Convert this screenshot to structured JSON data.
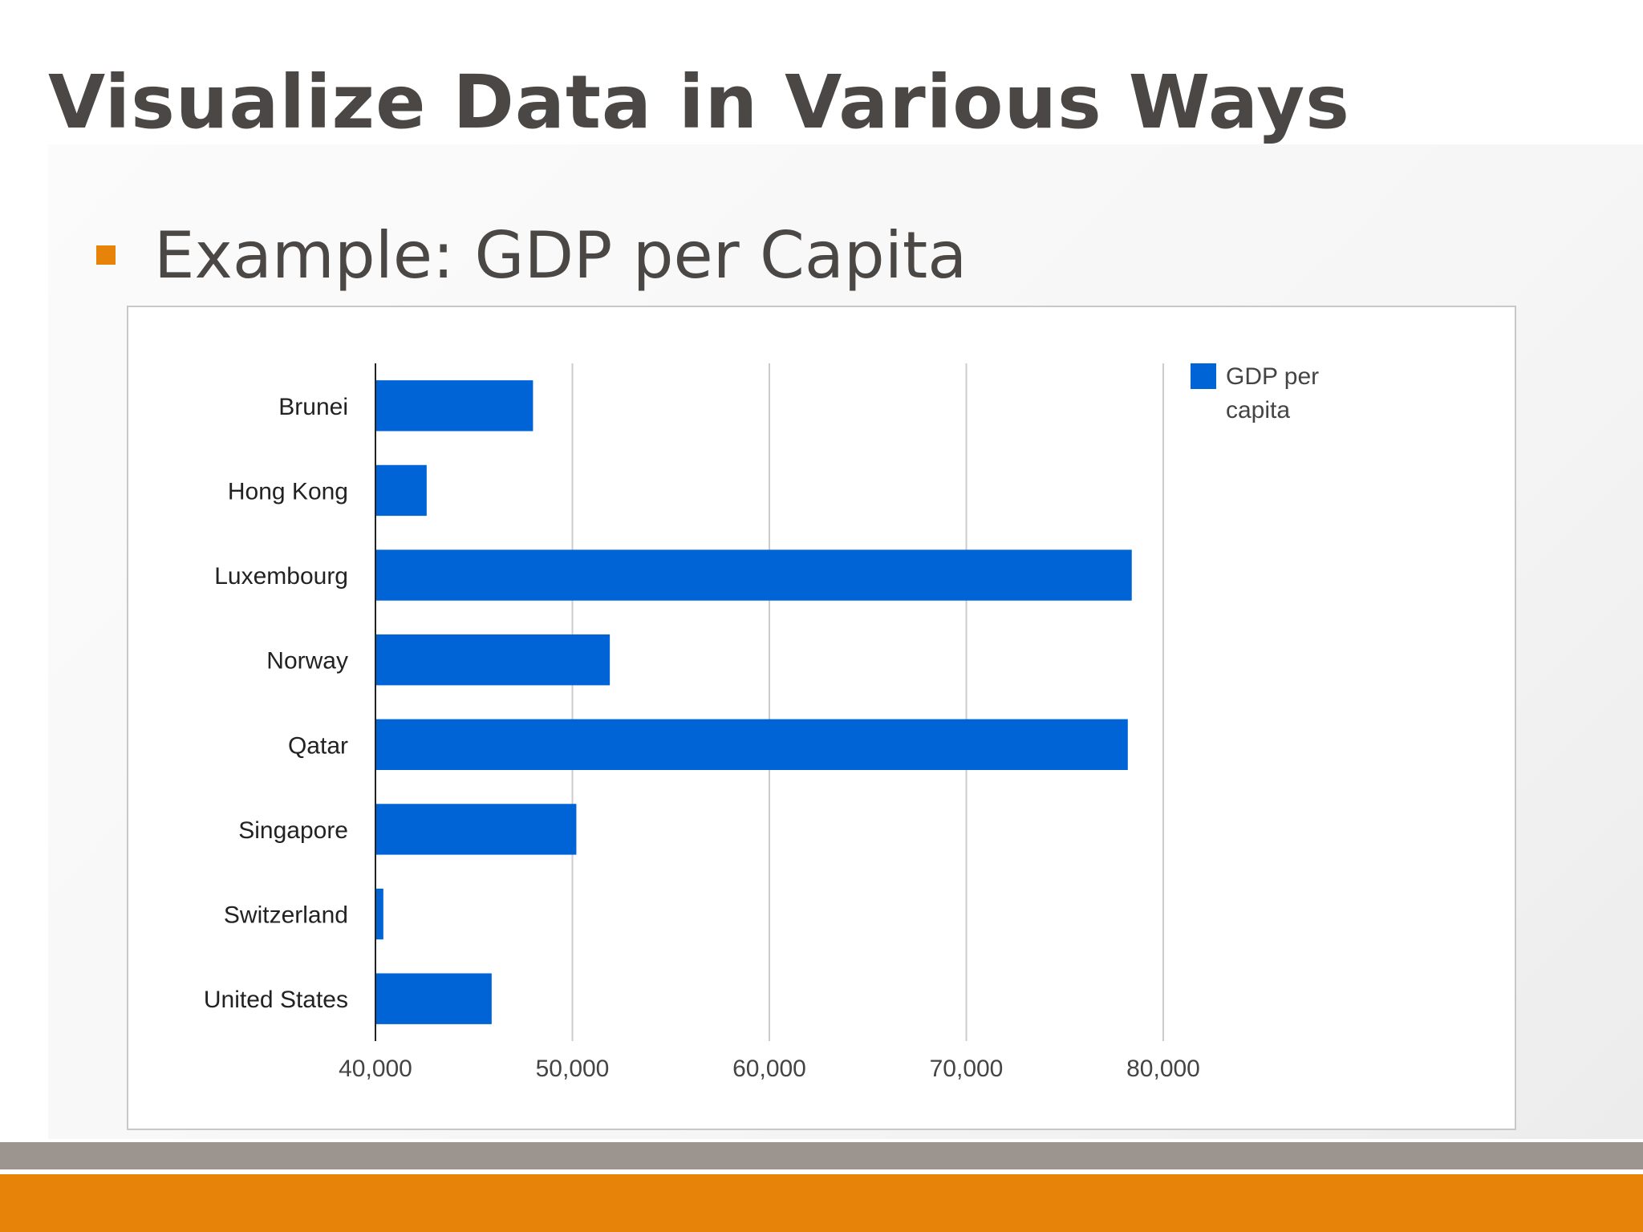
{
  "slide": {
    "title": "Visualize Data in Various Ways",
    "bullet": "Example: GDP per Capita"
  },
  "colors": {
    "bar": "#0063d6",
    "accent": "#e8830a",
    "footer_gray": "#9c948e",
    "title_text": "#4a4744"
  },
  "chart_data": {
    "type": "bar",
    "orientation": "horizontal",
    "categories": [
      "Brunei",
      "Hong Kong",
      "Luxembourg",
      "Norway",
      "Qatar",
      "Singapore",
      "Switzerland",
      "United States"
    ],
    "series": [
      {
        "name": "GDP per capita",
        "values": [
          48000,
          42600,
          78400,
          51900,
          78200,
          50200,
          40400,
          45900
        ]
      }
    ],
    "xlim": [
      40000,
      80000
    ],
    "xticks": [
      "40,000",
      "50,000",
      "60,000",
      "70,000",
      "80,000"
    ],
    "xtick_values": [
      40000,
      50000,
      60000,
      70000,
      80000
    ],
    "legend": {
      "position": "right",
      "lines": [
        "GDP per",
        "capita"
      ]
    },
    "grid": true
  }
}
